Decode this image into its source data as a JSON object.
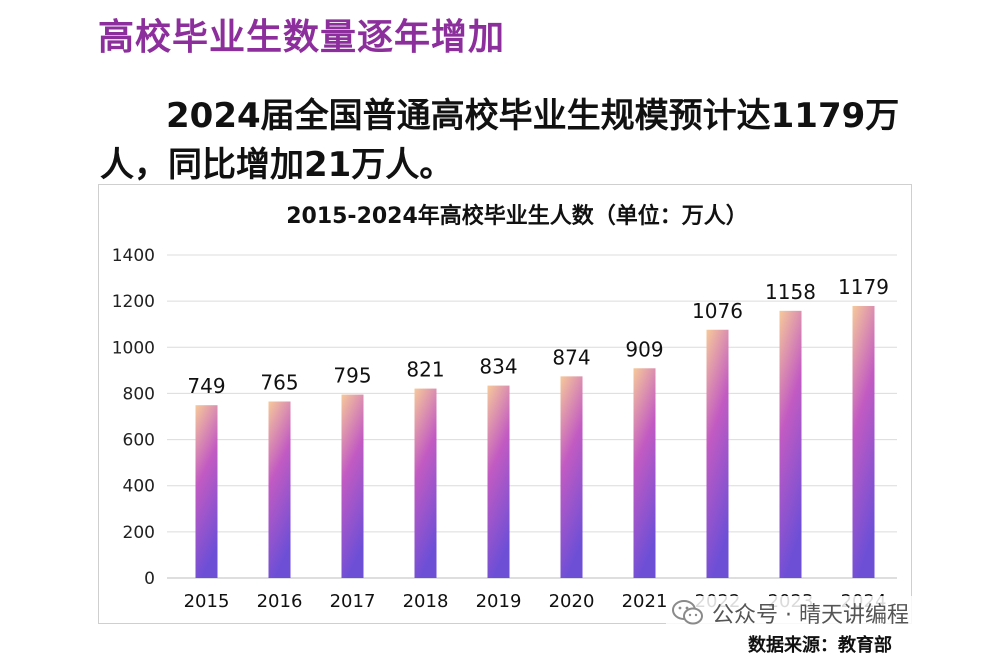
{
  "header": {
    "title": "高校毕业生数量逐年增加",
    "lead": "2024届全国普通高校毕业生规模预计达1179万人，同比增加21万人。"
  },
  "chart_data": {
    "type": "bar",
    "title": "2015-2024年高校毕业生人数（单位：万人）",
    "categories": [
      "2015",
      "2016",
      "2017",
      "2018",
      "2019",
      "2020",
      "2021",
      "2022",
      "2023",
      "2024"
    ],
    "values": [
      749,
      765,
      795,
      821,
      834,
      874,
      909,
      1076,
      1158,
      1179
    ],
    "ylim": [
      0,
      1400
    ],
    "yticks": [
      0,
      200,
      400,
      600,
      800,
      1000,
      1200,
      1400
    ],
    "xlabel": "",
    "ylabel": "",
    "grid": true,
    "colors": {
      "bar_top": "#f6c99a",
      "bar_mid": "#c25bc2",
      "bar_bottom": "#6d4fd6",
      "grid": "#dcdcdc"
    }
  },
  "footer": {
    "watermark_text": "公众号 · 晴天讲编程",
    "watermark_icon": "wechat-icon",
    "source": "数据来源：教育部"
  }
}
